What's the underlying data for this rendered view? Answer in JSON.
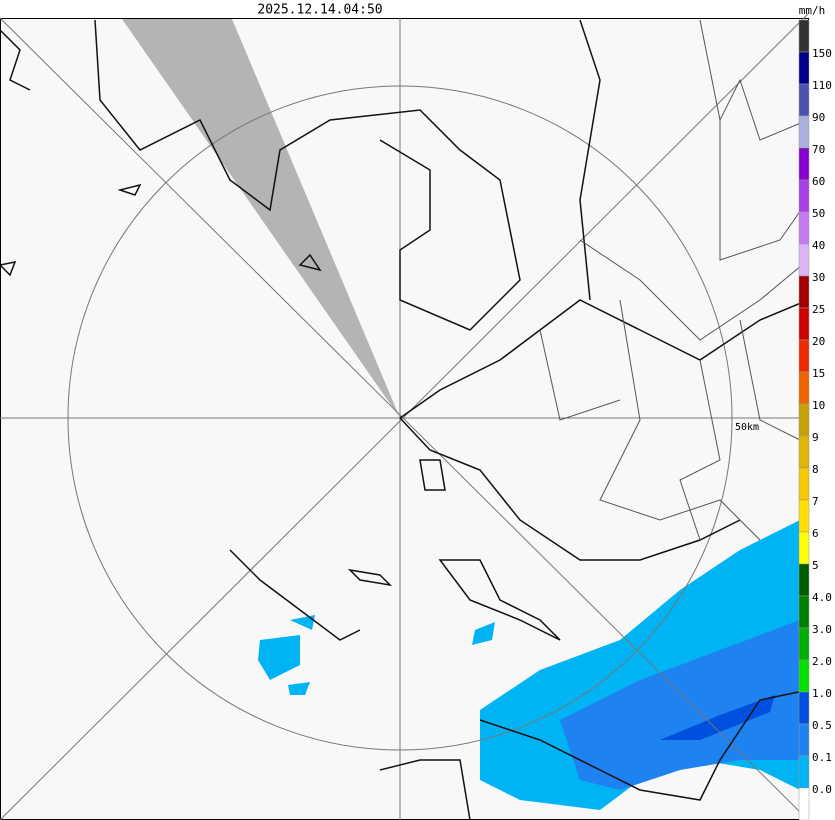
{
  "header": {
    "timestamp": "2025.12.14.04:50",
    "unit": "mm/h"
  },
  "map": {
    "range_label": "50km"
  },
  "legend": [
    {
      "label": null,
      "color": "#333333"
    },
    {
      "label": "150",
      "color": "#00008b"
    },
    {
      "label": "110",
      "color": "#4a52b0"
    },
    {
      "label": "90",
      "color": "#aab0dc"
    },
    {
      "label": "70",
      "color": "#8a00d0"
    },
    {
      "label": "60",
      "color": "#a640e8"
    },
    {
      "label": "50",
      "color": "#c47af2"
    },
    {
      "label": "40",
      "color": "#dcb4f4"
    },
    {
      "label": "30",
      "color": "#a00000"
    },
    {
      "label": "25",
      "color": "#d00000"
    },
    {
      "label": "20",
      "color": "#f02a00"
    },
    {
      "label": "15",
      "color": "#f06400"
    },
    {
      "label": "10",
      "color": "#c8a000"
    },
    {
      "label": "9",
      "color": "#e0b400"
    },
    {
      "label": "8",
      "color": "#f8c800"
    },
    {
      "label": "7",
      "color": "#ffe000"
    },
    {
      "label": "6",
      "color": "#ffff00"
    },
    {
      "label": "5",
      "color": "#005c00"
    },
    {
      "label": "4.0",
      "color": "#008000"
    },
    {
      "label": "3.0",
      "color": "#00b000"
    },
    {
      "label": "2.0",
      "color": "#00e000"
    },
    {
      "label": "1.0",
      "color": "#0050e0"
    },
    {
      "label": "0.5",
      "color": "#1e82f0"
    },
    {
      "label": "0.1",
      "color": "#00b4f4"
    },
    {
      "label": "0.0",
      "color": "#ffffff"
    }
  ]
}
